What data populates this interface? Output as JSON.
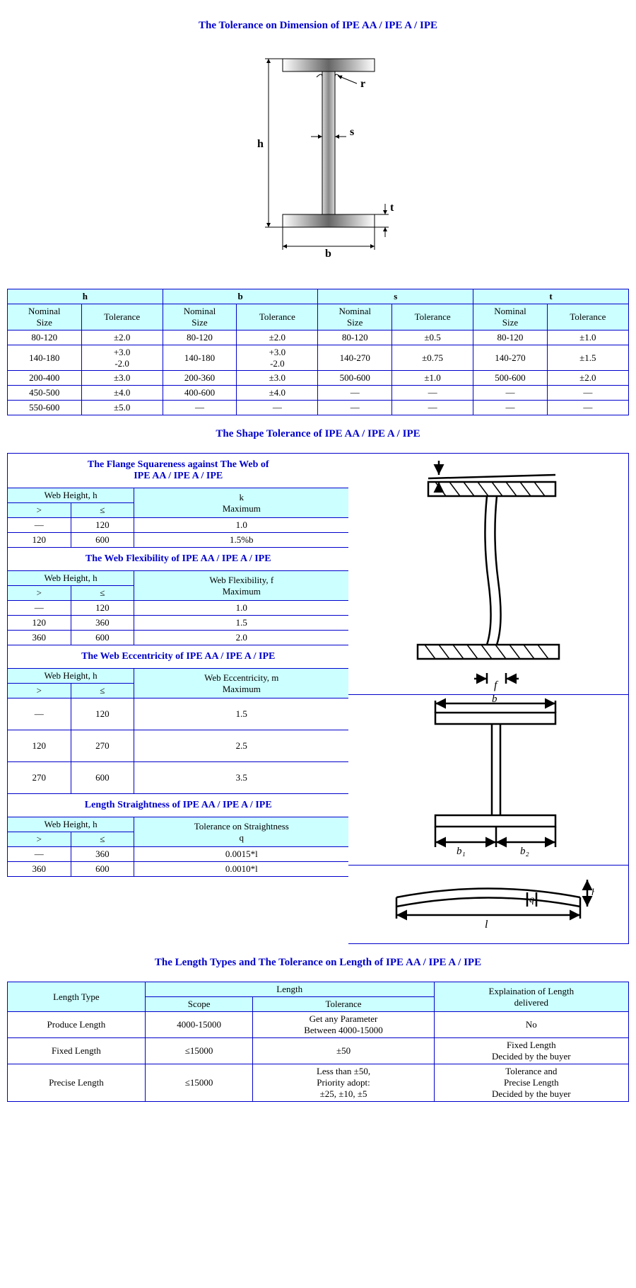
{
  "titles": {
    "dimension": "The Tolerance on Dimension of IPE AA / IPE A / IPE",
    "shape": "The Shape Tolerance of IPE AA / IPE A / IPE",
    "length": "The Length Types and The Tolerance on Length of IPE AA / IPE A / IPE"
  },
  "diagram_labels": {
    "h": "h",
    "b": "b",
    "s": "s",
    "t": "t",
    "r": "r"
  },
  "dim_table": {
    "groups": [
      "h",
      "b",
      "s",
      "t"
    ],
    "subcols": [
      "Nominal Size",
      "Tolerance"
    ],
    "rows": [
      [
        "80-120",
        "±2.0",
        "80-120",
        "±2.0",
        "80-120",
        "±0.5",
        "80-120",
        "±1.0"
      ],
      [
        "140-180",
        "+3.0\n-2.0",
        "140-180",
        "+3.0\n-2.0",
        "140-270",
        "±0.75",
        "140-270",
        "±1.5"
      ],
      [
        "200-400",
        "±3.0",
        "200-360",
        "±3.0",
        "500-600",
        "±1.0",
        "500-600",
        "±2.0"
      ],
      [
        "450-500",
        "±4.0",
        "400-600",
        "±4.0",
        "—",
        "—",
        "—",
        "—"
      ],
      [
        "550-600",
        "±5.0",
        "—",
        "—",
        "—",
        "—",
        "—",
        "—"
      ]
    ]
  },
  "shape_sections": [
    {
      "title_line1": "The Flange Squareness against The Web of",
      "title_line2": "IPE AA / IPE A / IPE",
      "webhdr": "Web Height, h",
      "gt": ">",
      "lte": "≤",
      "valhdr_line1": "k",
      "valhdr_line2": "Maximum",
      "rows": [
        [
          "—",
          "120",
          "1.0"
        ],
        [
          "120",
          "600",
          "1.5%b"
        ]
      ]
    },
    {
      "title_line1": "The Web Flexibility of IPE AA / IPE A / IPE",
      "title_line2": "",
      "webhdr": "Web Height, h",
      "gt": ">",
      "lte": "≤",
      "valhdr_line1": "Web Flexibility, f",
      "valhdr_line2": "Maximum",
      "rows": [
        [
          "—",
          "120",
          "1.0"
        ],
        [
          "120",
          "360",
          "1.5"
        ],
        [
          "360",
          "600",
          "2.0"
        ]
      ]
    },
    {
      "title_line1": "The Web Eccentricity of IPE AA / IPE A / IPE",
      "title_line2": "",
      "webhdr": "Web Height, h",
      "gt": ">",
      "lte": "≤",
      "valhdr_line1": "Web Eccentricity, m",
      "valhdr_line2": "Maximum",
      "rows": [
        [
          "—",
          "120",
          "1.5"
        ],
        [
          "120",
          "270",
          "2.5"
        ],
        [
          "270",
          "600",
          "3.5"
        ]
      ]
    },
    {
      "title_line1": "Length Straightness of IPE AA / IPE A / IPE",
      "title_line2": "",
      "webhdr": "Web Height, h",
      "gt": ">",
      "lte": "≤",
      "valhdr_line1": "Tolerance on Straightness",
      "valhdr_line2": "q",
      "rows": [
        [
          "—",
          "360",
          "0.0015*l"
        ],
        [
          "360",
          "600",
          "0.0010*l"
        ]
      ]
    }
  ],
  "length_table": {
    "length_type_hdr": "Length Type",
    "length_hdr": "Length",
    "scope_hdr": "Scope",
    "tol_hdr": "Tolerance",
    "explain_hdr": "Explaination of Length delivered",
    "rows": [
      {
        "type": "Produce Length",
        "scope": "4000-15000",
        "tol": "Get any Parameter\nBetween 4000-15000",
        "explain": "No"
      },
      {
        "type": "Fixed Length",
        "scope": "≤15000",
        "tol": "±50",
        "explain": "Fixed Length\nDecided by the buyer"
      },
      {
        "type": "Precise Length",
        "scope": "≤15000",
        "tol": "Less than ±50,\nPriority adopt:\n±25, ±10, ±5",
        "explain": "Tolerance and\nPrecise Length\nDecided by the buyer"
      }
    ]
  },
  "colors": {
    "border": "#0000cc",
    "header_bg": "#ccffff",
    "title": "#0000cc"
  }
}
